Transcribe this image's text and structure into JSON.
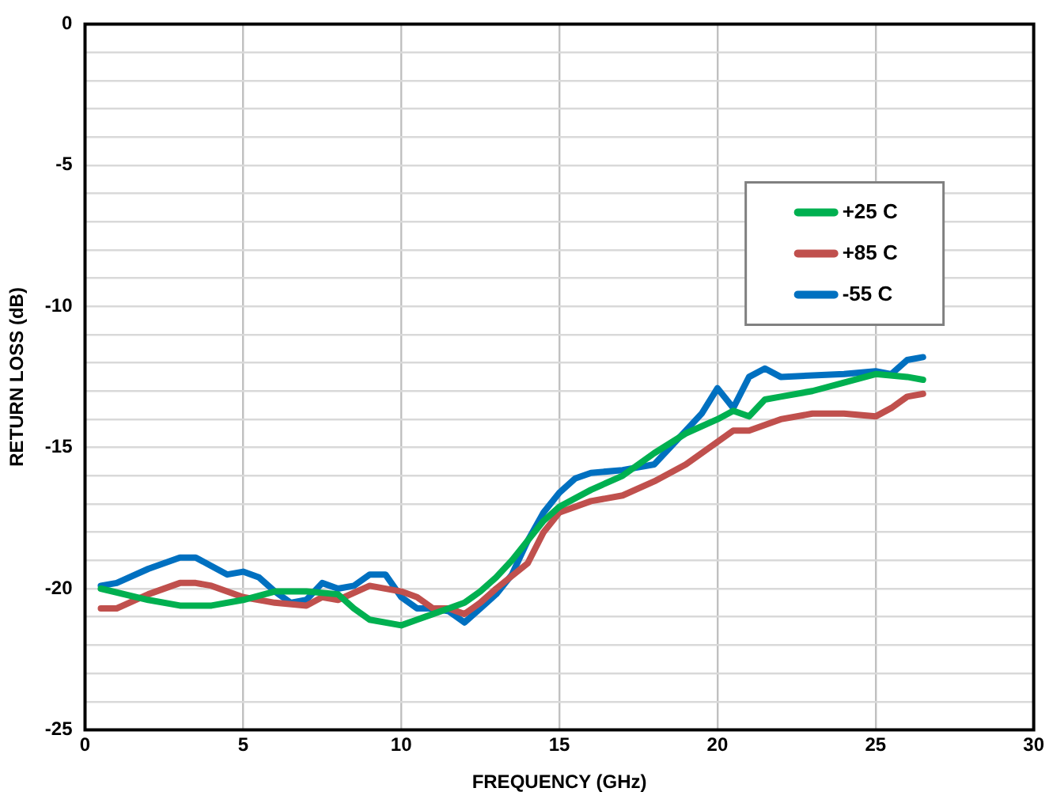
{
  "chart_data": {
    "type": "line",
    "xlabel": "FREQUENCY (GHz)",
    "ylabel": "RETURN LOSS (dB)",
    "xlim": [
      0,
      30
    ],
    "xticks": [
      0,
      5,
      10,
      15,
      20,
      25,
      30
    ],
    "ylim": [
      -25,
      0
    ],
    "yticks": [
      0,
      {
        "value": -1,
        "label": null
      },
      {
        "value": -2,
        "label": null
      },
      {
        "value": -3,
        "label": null
      },
      {
        "value": -4,
        "label": null
      },
      -5,
      {
        "value": -6,
        "label": null
      },
      {
        "value": -7,
        "label": null
      },
      {
        "value": -8,
        "label": null
      },
      {
        "value": -9,
        "label": null
      },
      -10,
      {
        "value": -11,
        "label": null
      },
      {
        "value": -12,
        "label": null
      },
      {
        "value": -13,
        "label": null
      },
      {
        "value": -14,
        "label": null
      },
      -15,
      {
        "value": -16,
        "label": null
      },
      {
        "value": -17,
        "label": null
      },
      {
        "value": -18,
        "label": null
      },
      {
        "value": -19,
        "label": null
      },
      -20,
      {
        "value": -21,
        "label": null
      },
      {
        "value": -22,
        "label": null
      },
      {
        "value": -23,
        "label": null
      },
      {
        "value": -24,
        "label": null
      },
      -25
    ],
    "grid": true,
    "legend": "top right",
    "marker": "none",
    "line_style": "solid",
    "series": [
      {
        "name": "+25 C",
        "color": "#00b050",
        "x": [
          0.5,
          2,
          3,
          4,
          5,
          6,
          7,
          8,
          8.5,
          9,
          10,
          10.5,
          11,
          11.5,
          12,
          12.5,
          13,
          13.5,
          14,
          14.5,
          15,
          16,
          17,
          18,
          19,
          20,
          20.5,
          21,
          21.5,
          22,
          23,
          24,
          25,
          26,
          26.5
        ],
        "values": [
          -20.0,
          -20.4,
          -20.6,
          -20.6,
          -20.4,
          -20.1,
          -20.1,
          -20.2,
          -20.7,
          -21.1,
          -21.3,
          -21.1,
          -20.9,
          -20.7,
          -20.5,
          -20.1,
          -19.6,
          -19.0,
          -18.3,
          -17.6,
          -17.1,
          -16.5,
          -16.0,
          -15.2,
          -14.5,
          -14.0,
          -13.7,
          -13.9,
          -13.3,
          -13.2,
          -13.0,
          -12.7,
          -12.4,
          -12.5,
          -12.6
        ]
      },
      {
        "name": "+85 C",
        "color": "#c0504d",
        "x": [
          0.5,
          1,
          2,
          3,
          3.5,
          4,
          5,
          6,
          7,
          7.5,
          8,
          9,
          10,
          10.5,
          11,
          11.5,
          12,
          12.5,
          13,
          14,
          14.5,
          15,
          16,
          17,
          18,
          19,
          20,
          20.5,
          21,
          22,
          23,
          24,
          25,
          25.5,
          26,
          26.5
        ],
        "values": [
          -20.7,
          -20.7,
          -20.2,
          -19.8,
          -19.8,
          -19.9,
          -20.3,
          -20.5,
          -20.6,
          -20.3,
          -20.4,
          -19.9,
          -20.1,
          -20.3,
          -20.7,
          -20.7,
          -20.9,
          -20.5,
          -20.0,
          -19.1,
          -18.0,
          -17.3,
          -16.9,
          -16.7,
          -16.2,
          -15.6,
          -14.8,
          -14.4,
          -14.4,
          -14.0,
          -13.8,
          -13.8,
          -13.9,
          -13.6,
          -13.2,
          -13.1
        ]
      },
      {
        "name": "-55 C",
        "color": "#0070c0",
        "x": [
          0.5,
          1,
          2,
          3,
          3.5,
          4,
          4.5,
          5,
          5.5,
          6,
          6.5,
          7,
          7.5,
          8,
          8.5,
          9,
          9.5,
          10,
          10.5,
          11,
          11.5,
          12,
          12.5,
          13,
          13.5,
          14,
          14.5,
          15,
          15.5,
          16,
          17,
          18,
          19,
          19.5,
          20,
          20.5,
          21,
          21.5,
          22,
          24,
          25,
          25.5,
          26,
          26.5
        ],
        "values": [
          -19.9,
          -19.8,
          -19.3,
          -18.9,
          -18.9,
          -19.2,
          -19.5,
          -19.4,
          -19.6,
          -20.1,
          -20.5,
          -20.4,
          -19.8,
          -20.0,
          -19.9,
          -19.5,
          -19.5,
          -20.3,
          -20.7,
          -20.7,
          -20.8,
          -21.2,
          -20.7,
          -20.2,
          -19.5,
          -18.3,
          -17.3,
          -16.6,
          -16.1,
          -15.9,
          -15.8,
          -15.6,
          -14.4,
          -13.8,
          -12.9,
          -13.6,
          -12.5,
          -12.2,
          -12.5,
          -12.4,
          -12.3,
          -12.4,
          -11.9,
          -11.8
        ]
      }
    ]
  }
}
